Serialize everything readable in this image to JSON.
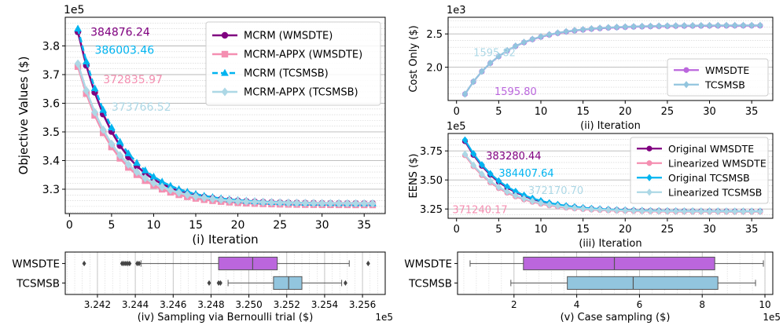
{
  "colors": {
    "wmsdte_orig": "#800080",
    "wmsdte_lin": "#f48fb1",
    "tcsmsb_orig": "#00b4f0",
    "tcsmsb_lin": "#add8e6",
    "wmsdte_box": "#bb66dd",
    "tcsmsb_box": "#92c5de",
    "grid": "#b8b8b8"
  },
  "chart_data": [
    {
      "id": "i",
      "type": "line",
      "xlabel": "(i) Iteration",
      "ylabel": "Objective Values ($)",
      "exponent": "1e5",
      "xlim": [
        -0.5,
        37.5
      ],
      "ylim": [
        3.215,
        3.9
      ],
      "xticks": [
        0,
        5,
        10,
        15,
        20,
        25,
        30,
        35
      ],
      "yticks": [
        3.3,
        3.4,
        3.5,
        3.6,
        3.7,
        3.8
      ],
      "ytick_labels": [
        "3.3",
        "3.4",
        "3.5",
        "3.6",
        "3.7",
        "3.8"
      ],
      "legend_position": "upper-right",
      "series": [
        {
          "name": "MCRM (WMSDTE)",
          "color_key": "wmsdte_orig",
          "marker": "circle",
          "dash": "",
          "start": 3.849,
          "end": 3.25,
          "tau": 4.6
        },
        {
          "name": "MCRM-APPX (WMSDTE)",
          "color_key": "wmsdte_lin",
          "marker": "square",
          "dash": "",
          "start": 3.728,
          "end": 3.245,
          "tau": 4.6
        },
        {
          "name": "MCRM (TCSMSB)",
          "color_key": "tcsmsb_orig",
          "marker": "triangle",
          "dash": "7,4",
          "start": 3.86,
          "end": 3.25,
          "tau": 4.8
        },
        {
          "name": "MCRM-APPX (TCSMSB)",
          "color_key": "tcsmsb_lin",
          "marker": "diamond",
          "dash": "",
          "start": 3.738,
          "end": 3.25,
          "tau": 4.7
        }
      ],
      "annotations": [
        {
          "text": "384876.24",
          "color_key": "wmsdte_orig",
          "x": 2.5,
          "y": 3.849
        },
        {
          "text": "386003.46",
          "color_key": "tcsmsb_orig",
          "x": 3.0,
          "y": 3.786
        },
        {
          "text": "372835.97",
          "color_key": "wmsdte_lin",
          "x": 4.0,
          "y": 3.684
        },
        {
          "text": "373766.52",
          "color_key": "tcsmsb_lin",
          "x": 5.0,
          "y": 3.588
        }
      ]
    },
    {
      "id": "ii",
      "type": "line",
      "xlabel": "(ii) Iteration",
      "ylabel": "Cost Only ($)",
      "exponent": "1e3",
      "xlim": [
        -1,
        37.5
      ],
      "ylim": [
        1.5,
        2.75
      ],
      "xticks": [
        0,
        5,
        10,
        15,
        20,
        25,
        30,
        35
      ],
      "yticks": [
        2.0,
        2.5
      ],
      "ytick_labels": [
        "2.0",
        "2.5"
      ],
      "legend_position": "lower-right",
      "series": [
        {
          "name": "WMSDTE",
          "color_key": "wmsdte_box",
          "marker": "circle",
          "dash": "",
          "start": 1.596,
          "end": 2.625,
          "tau": 5.0
        },
        {
          "name": "TCSMSB",
          "color_key": "tcsmsb_box",
          "marker": "diamond",
          "dash": "",
          "start": 1.596,
          "end": 2.63,
          "tau": 5.0
        }
      ],
      "annotations": [
        {
          "text": "1595.82",
          "color_key": "tcsmsb_lin",
          "x": 2.0,
          "y": 2.22
        },
        {
          "text": "1595.80",
          "color_key": "wmsdte_box",
          "x": 4.5,
          "y": 1.64
        }
      ]
    },
    {
      "id": "iii",
      "type": "line",
      "xlabel": "(iii) Iteration",
      "ylabel": "EENS ($)",
      "exponent": "1e5",
      "xlim": [
        -1,
        37.5
      ],
      "ylim": [
        3.17,
        3.9
      ],
      "xticks": [
        0,
        5,
        10,
        15,
        20,
        25,
        30,
        35
      ],
      "yticks": [
        3.25,
        3.5,
        3.75
      ],
      "ytick_labels": [
        "3.25",
        "3.50",
        "3.75"
      ],
      "legend_position": "upper-right",
      "series": [
        {
          "name": "Original WMSDTE",
          "color_key": "wmsdte_orig",
          "marker": "circle",
          "dash": "",
          "start": 3.833,
          "end": 3.23,
          "tau": 4.6
        },
        {
          "name": "Linearized WMSDTE",
          "color_key": "wmsdte_lin",
          "marker": "circle",
          "dash": "",
          "start": 3.712,
          "end": 3.225,
          "tau": 4.6
        },
        {
          "name": "Original TCSMSB",
          "color_key": "tcsmsb_orig",
          "marker": "diamond",
          "dash": "",
          "start": 3.844,
          "end": 3.23,
          "tau": 4.7
        },
        {
          "name": "Linearized TCSMSB",
          "color_key": "tcsmsb_lin",
          "marker": "diamond",
          "dash": "",
          "start": 3.722,
          "end": 3.228,
          "tau": 4.7
        }
      ],
      "annotations": [
        {
          "text": "383280.44",
          "color_key": "wmsdte_orig",
          "x": 3.5,
          "y": 3.71
        },
        {
          "text": "384407.64",
          "color_key": "tcsmsb_orig",
          "x": 5.0,
          "y": 3.56
        },
        {
          "text": "372170.70",
          "color_key": "tcsmsb_lin",
          "x": 8.5,
          "y": 3.41
        },
        {
          "text": "371240.17",
          "color_key": "wmsdte_lin",
          "x": -0.5,
          "y": 3.245
        }
      ]
    },
    {
      "id": "iv",
      "type": "box",
      "xlabel": "(iv) Sampling via Bernoulli trial ($)",
      "exponent": "1e5",
      "xlim": [
        3.2403,
        3.2572
      ],
      "xticks": [
        3.242,
        3.244,
        3.246,
        3.248,
        3.25,
        3.252,
        3.254,
        3.256
      ],
      "xtick_labels": [
        "3.242",
        "3.244",
        "3.246",
        "3.248",
        "3.250",
        "3.252",
        "3.254",
        "3.256"
      ],
      "boxes": [
        {
          "name": "WMSDTE",
          "color_key": "wmsdte_box",
          "whisker_low": 3.2443,
          "q1": 3.2484,
          "median": 3.2502,
          "q3": 3.2515,
          "whisker_high": 3.2553,
          "outliers": [
            3.2413,
            3.2433,
            3.2434,
            3.2435,
            3.2436,
            3.2437,
            3.2441,
            3.2442,
            3.2563
          ]
        },
        {
          "name": "TCSMSB",
          "color_key": "tcsmsb_box",
          "whisker_low": 3.2489,
          "q1": 3.2513,
          "median": 3.2521,
          "q3": 3.2528,
          "whisker_high": 3.2549,
          "outliers": [
            3.2479,
            3.2484,
            3.2485,
            3.2551
          ]
        }
      ]
    },
    {
      "id": "v",
      "type": "box",
      "xlabel": "(v) Case sampling ($)",
      "exponent": "1e5",
      "xlim": [
        0.2,
        10.25
      ],
      "xticks": [
        2,
        4,
        6,
        8,
        10
      ],
      "xtick_labels": [
        "2",
        "4",
        "6",
        "8",
        "10"
      ],
      "boxes": [
        {
          "name": "WMSDTE",
          "color_key": "wmsdte_box",
          "whisker_low": 0.6,
          "q1": 2.3,
          "median": 5.2,
          "q3": 8.4,
          "whisker_high": 9.95,
          "outliers": []
        },
        {
          "name": "TCSMSB",
          "color_key": "tcsmsb_box",
          "whisker_low": 1.9,
          "q1": 3.7,
          "median": 5.8,
          "q3": 8.5,
          "whisker_high": 9.7,
          "outliers": []
        }
      ]
    }
  ]
}
